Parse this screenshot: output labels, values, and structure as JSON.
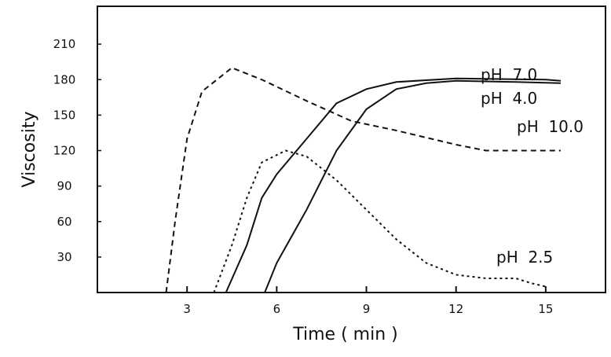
{
  "chart_data": {
    "type": "line",
    "x_label": "Time ( min )",
    "y_label": "Viscosity",
    "xlim": [
      0,
      17
    ],
    "ylim": [
      0,
      242
    ],
    "xticks": [
      3,
      6,
      9,
      12,
      15
    ],
    "yticks": [
      30,
      60,
      90,
      120,
      150,
      180,
      210
    ],
    "series": [
      {
        "name": "pH  7.0",
        "color": "#111111",
        "style": "solid",
        "x": [
          4.3,
          5,
          5.5,
          6,
          7,
          8,
          9,
          10,
          12,
          15,
          15.5
        ],
        "values": [
          0,
          40,
          80,
          100,
          130,
          160,
          172,
          178,
          181,
          180,
          179
        ]
      },
      {
        "name": "pH  4.0",
        "color": "#111111",
        "style": "solid",
        "x": [
          5.6,
          6,
          7,
          8,
          9,
          10,
          11,
          12,
          14,
          15.5
        ],
        "values": [
          0,
          25,
          70,
          120,
          155,
          172,
          177,
          179,
          178,
          177
        ]
      },
      {
        "name": "pH  10.0",
        "color": "#111111",
        "style": "dashed",
        "x": [
          2.3,
          2.6,
          3,
          3.5,
          4.5,
          5.5,
          7,
          8.5,
          10,
          12,
          13,
          15.5
        ],
        "values": [
          0,
          60,
          130,
          170,
          190,
          180,
          162,
          145,
          137,
          125,
          120,
          120
        ]
      },
      {
        "name": "pH  2.5",
        "color": "#111111",
        "style": "dotted",
        "x": [
          3.9,
          4.5,
          5,
          5.5,
          6.3,
          7,
          8,
          9,
          10,
          11,
          12,
          13,
          14,
          14.5,
          15
        ],
        "values": [
          0,
          40,
          80,
          110,
          120,
          115,
          95,
          70,
          45,
          25,
          15,
          12,
          12,
          8,
          5
        ]
      }
    ]
  }
}
